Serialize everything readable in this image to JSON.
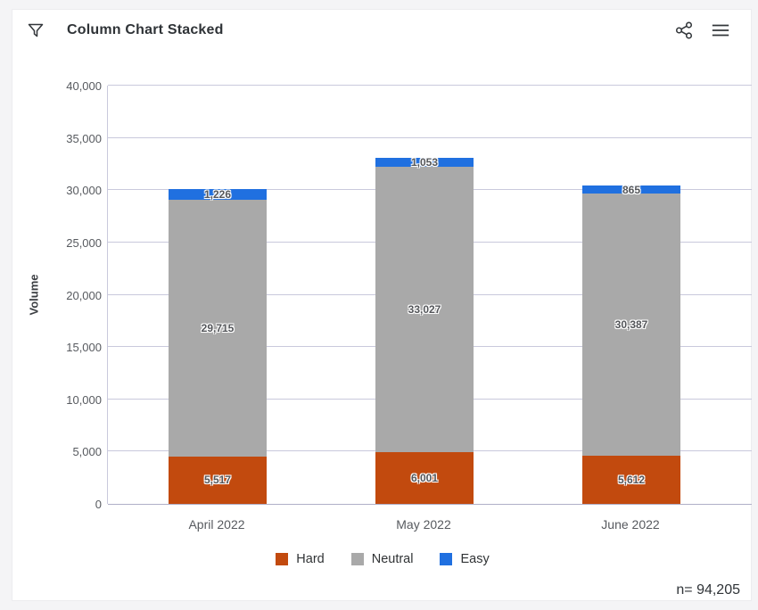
{
  "header": {
    "title": "Column Chart Stacked",
    "icons": [
      "filter-icon",
      "share-icon",
      "menu-icon"
    ]
  },
  "chart_data": {
    "type": "bar",
    "stacked": true,
    "title": "Column Chart Stacked",
    "categories": [
      "April 2022",
      "May 2022",
      "June 2022"
    ],
    "series": [
      {
        "name": "Hard",
        "color": "#C24A0E",
        "values": [
          5517,
          6001,
          5612
        ],
        "labels": [
          "5,517",
          "6,001",
          "5,612"
        ]
      },
      {
        "name": "Neutral",
        "color": "#A9A9A9",
        "values": [
          29715,
          33027,
          30387
        ],
        "labels": [
          "29,715",
          "33,027",
          "30,387"
        ]
      },
      {
        "name": "Easy",
        "color": "#2070E0",
        "values": [
          1226,
          1053,
          865
        ],
        "labels": [
          "1,226",
          "1,053",
          "865"
        ]
      }
    ],
    "xlabel": "",
    "ylabel": "Volume",
    "ylim": [
      0,
      40000
    ],
    "ytick_step": 5000,
    "yticks": [
      "0",
      "5,000",
      "10,000",
      "15,000",
      "20,000",
      "25,000",
      "30,000",
      "35,000",
      "40,000"
    ],
    "grid": true,
    "legend_position": "bottom",
    "grid_color": "#C9C9DC",
    "label_color": "#54565A"
  },
  "footer": {
    "n_label": "n= 94,205"
  }
}
